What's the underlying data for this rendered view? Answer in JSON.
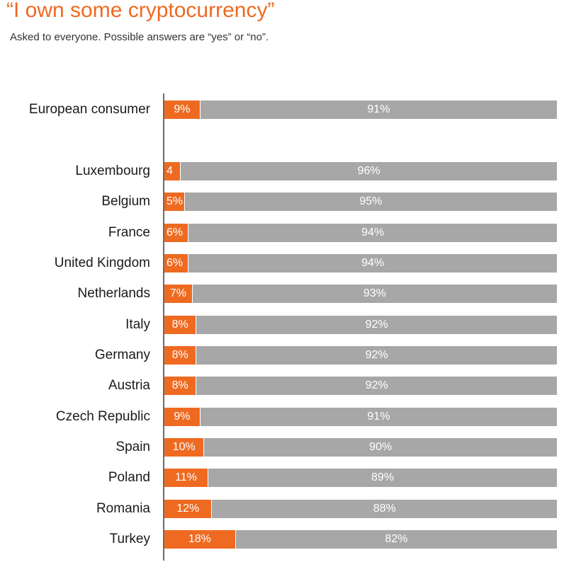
{
  "header": {
    "title": "“I own some cryptocurrency”",
    "subtitle": "Asked to everyone. Possible answers are “yes” or “no”."
  },
  "colors": {
    "yes": "#ee6a21",
    "no": "#a7a7a7",
    "title": "#ef6a21"
  },
  "chart_data": {
    "type": "bar",
    "orientation": "horizontal",
    "stacked": true,
    "title": "“I own some cryptocurrency”",
    "subtitle": "Asked to everyone. Possible answers are “yes” or “no”.",
    "categories": [
      "European consumer",
      "Luxembourg",
      "Belgium",
      "France",
      "United Kingdom",
      "Netherlands",
      "Italy",
      "Germany",
      "Austria",
      "Czech Republic",
      "Spain",
      "Poland",
      "Romania",
      "Turkey"
    ],
    "series": [
      {
        "values": [
          9,
          4,
          5,
          6,
          6,
          7,
          8,
          8,
          8,
          9,
          10,
          11,
          12,
          18
        ],
        "labels": [
          "9%",
          "4",
          "5%",
          "6%",
          "6%",
          "7%",
          "8%",
          "8%",
          "8%",
          "9%",
          "10%",
          "11%",
          "12%",
          "18%"
        ]
      },
      {
        "values": [
          91,
          96,
          95,
          94,
          94,
          93,
          92,
          92,
          92,
          91,
          90,
          89,
          88,
          82
        ],
        "labels": [
          "91%",
          "96%",
          "95%",
          "94%",
          "94%",
          "93%",
          "92%",
          "92%",
          "92%",
          "91%",
          "90%",
          "89%",
          "88%",
          "82%"
        ]
      }
    ],
    "xlim": [
      0,
      100
    ],
    "legend": "none",
    "grid": false
  }
}
